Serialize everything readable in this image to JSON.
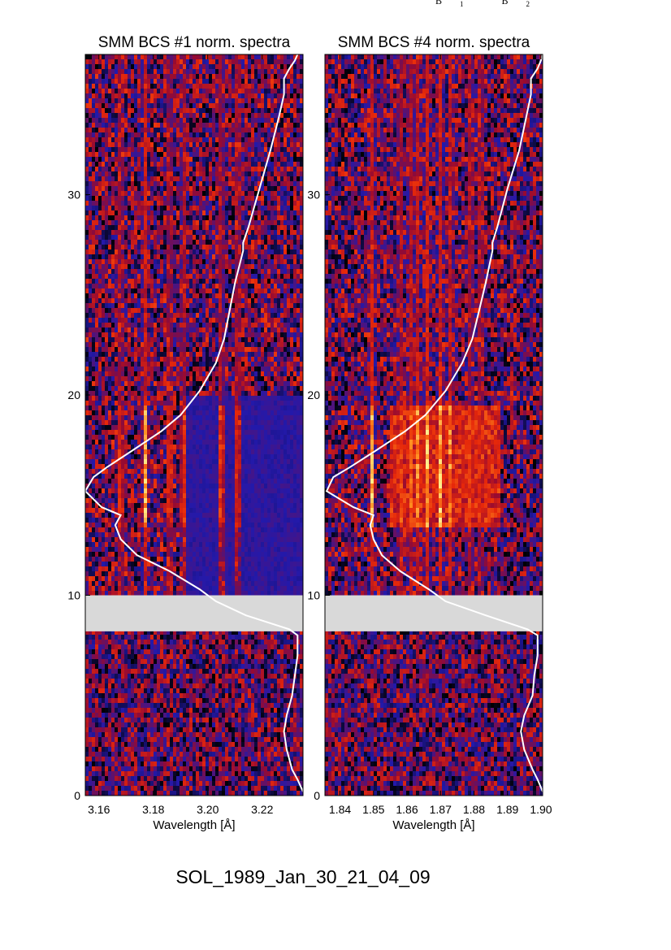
{
  "header": {
    "top_labels": [
      {
        "base": "B",
        "sub": "1"
      },
      {
        "base": "B",
        "sub": "2"
      }
    ]
  },
  "footer": {
    "event_id": "SOL_1989_Jan_30_21_04_09"
  },
  "chart_data": [
    {
      "type": "heatmap",
      "title": "SMM BCS #1 norm. spectra",
      "xlabel": "Wavelength [Å]",
      "ylabel": "",
      "xlim": [
        3.155,
        3.235
      ],
      "ylim": [
        0,
        37
      ],
      "x_ticks": [
        3.16,
        3.18,
        3.2,
        3.22
      ],
      "x_tick_labels": [
        "3.16",
        "3.18",
        "3.20",
        "3.22"
      ],
      "y_ticks": [
        0,
        10,
        20,
        30
      ],
      "y_tick_labels": [
        "0",
        "10",
        "20",
        "30"
      ],
      "data_gap": [
        8.2,
        10.0
      ],
      "colormap": "black-blue-red-yellow",
      "line_features": [
        3.168,
        3.177,
        3.186,
        3.191,
        3.205,
        3.211
      ],
      "bright_interval": [
        13.5,
        19.5
      ],
      "overlay_curve": {
        "color": "#ffffff",
        "points": [
          [
            3.235,
            0.2
          ],
          [
            3.233,
            0.8
          ],
          [
            3.231,
            1.3
          ],
          [
            3.229,
            2.3
          ],
          [
            3.228,
            3.2
          ],
          [
            3.229,
            4.0
          ],
          [
            3.231,
            5.0
          ],
          [
            3.232,
            6.0
          ],
          [
            3.233,
            7.0
          ],
          [
            3.233,
            8.0
          ],
          [
            3.23,
            8.3
          ],
          [
            3.214,
            9.0
          ],
          [
            3.203,
            9.7
          ],
          [
            3.197,
            10.3
          ],
          [
            3.186,
            11.2
          ],
          [
            3.174,
            12.0
          ],
          [
            3.168,
            12.8
          ],
          [
            3.166,
            13.5
          ],
          [
            3.168,
            14.0
          ],
          [
            3.161,
            14.4
          ],
          [
            3.155,
            15.2
          ],
          [
            3.158,
            15.9
          ],
          [
            3.163,
            16.4
          ],
          [
            3.172,
            17.2
          ],
          [
            3.183,
            18.2
          ],
          [
            3.19,
            19.0
          ],
          [
            3.197,
            20.2
          ],
          [
            3.203,
            21.6
          ],
          [
            3.206,
            22.8
          ],
          [
            3.208,
            24.2
          ],
          [
            3.21,
            25.6
          ],
          [
            3.213,
            27.2
          ],
          [
            3.213,
            27.6
          ],
          [
            3.215,
            28.4
          ],
          [
            3.219,
            30.3
          ],
          [
            3.223,
            32.2
          ],
          [
            3.226,
            33.8
          ],
          [
            3.228,
            35.0
          ],
          [
            3.228,
            35.8
          ],
          [
            3.23,
            36.3
          ],
          [
            3.232,
            36.7
          ],
          [
            3.233,
            37.0
          ]
        ]
      }
    },
    {
      "type": "heatmap",
      "title": "SMM BCS #4 norm. spectra",
      "xlabel": "Wavelength [Å]",
      "ylabel": "",
      "xlim": [
        1.8355,
        1.9005
      ],
      "ylim": [
        0,
        37
      ],
      "x_ticks": [
        1.84,
        1.85,
        1.86,
        1.87,
        1.88,
        1.89,
        1.9
      ],
      "x_tick_labels": [
        "1.84",
        "1.85",
        "1.86",
        "1.87",
        "1.88",
        "1.89",
        "1.90"
      ],
      "y_ticks": [
        0,
        10,
        20,
        30
      ],
      "y_tick_labels": [
        "0",
        "10",
        "20",
        "30"
      ],
      "data_gap": [
        8.2,
        10.0
      ],
      "colormap": "black-blue-red-yellow",
      "line_features": [
        1.8495,
        1.858,
        1.861,
        1.863,
        1.866,
        1.87,
        1.873,
        1.879,
        1.882
      ],
      "bright_interval": [
        13.5,
        19.5
      ],
      "overlay_curve": {
        "color": "#ffffff",
        "points": [
          [
            1.9005,
            0.2
          ],
          [
            1.899,
            0.8
          ],
          [
            1.8975,
            1.3
          ],
          [
            1.895,
            2.3
          ],
          [
            1.894,
            3.2
          ],
          [
            1.895,
            4.0
          ],
          [
            1.8975,
            5.0
          ],
          [
            1.898,
            6.0
          ],
          [
            1.899,
            7.0
          ],
          [
            1.899,
            8.0
          ],
          [
            1.896,
            8.3
          ],
          [
            1.8835,
            9.0
          ],
          [
            1.8715,
            9.7
          ],
          [
            1.8665,
            10.3
          ],
          [
            1.858,
            11.2
          ],
          [
            1.8525,
            12.0
          ],
          [
            1.85,
            12.8
          ],
          [
            1.849,
            13.5
          ],
          [
            1.85,
            14.0
          ],
          [
            1.844,
            14.4
          ],
          [
            1.836,
            15.2
          ],
          [
            1.838,
            15.9
          ],
          [
            1.843,
            16.4
          ],
          [
            1.8505,
            17.2
          ],
          [
            1.8595,
            18.2
          ],
          [
            1.8655,
            19.0
          ],
          [
            1.8715,
            20.2
          ],
          [
            1.8765,
            21.6
          ],
          [
            1.8795,
            22.8
          ],
          [
            1.8815,
            24.2
          ],
          [
            1.8835,
            25.6
          ],
          [
            1.8855,
            27.2
          ],
          [
            1.8855,
            27.6
          ],
          [
            1.887,
            28.4
          ],
          [
            1.89,
            30.3
          ],
          [
            1.8935,
            32.2
          ],
          [
            1.8955,
            33.8
          ],
          [
            1.897,
            35.0
          ],
          [
            1.897,
            35.8
          ],
          [
            1.899,
            36.3
          ],
          [
            1.9,
            36.7
          ],
          [
            1.9005,
            37.0
          ]
        ]
      }
    }
  ]
}
